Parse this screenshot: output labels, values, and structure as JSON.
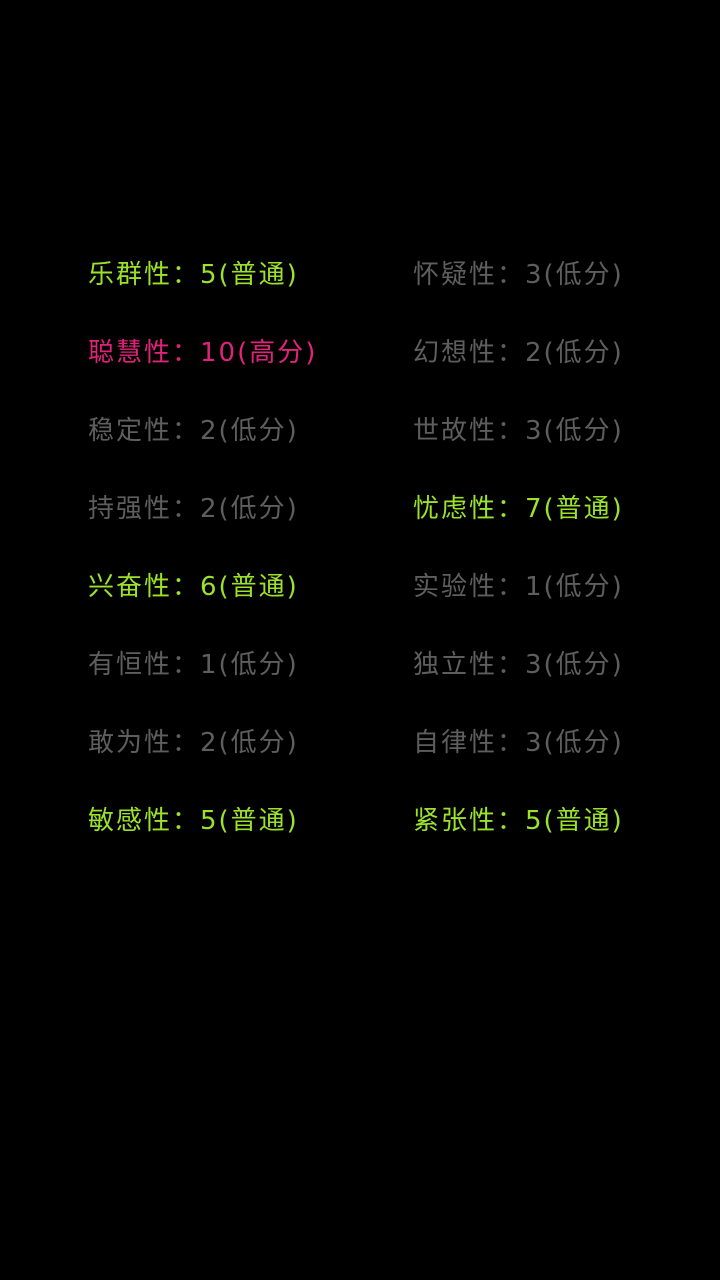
{
  "colors": {
    "high": "#e0237a",
    "normal": "#9be22a",
    "low": "#5e5e5e",
    "background": "#000000"
  },
  "traits": [
    {
      "text": "乐群性：5(普通)",
      "level": "normal"
    },
    {
      "text": "怀疑性：3(低分)",
      "level": "low"
    },
    {
      "text": "聪慧性：10(高分)",
      "level": "high"
    },
    {
      "text": "幻想性：2(低分)",
      "level": "low"
    },
    {
      "text": "稳定性：2(低分)",
      "level": "low"
    },
    {
      "text": "世故性：3(低分)",
      "level": "low"
    },
    {
      "text": "持强性：2(低分)",
      "level": "low"
    },
    {
      "text": "忧虑性：7(普通)",
      "level": "normal"
    },
    {
      "text": "兴奋性：6(普通)",
      "level": "normal"
    },
    {
      "text": "实验性：1(低分)",
      "level": "low"
    },
    {
      "text": "有恒性：1(低分)",
      "level": "low"
    },
    {
      "text": "独立性：3(低分)",
      "level": "low"
    },
    {
      "text": "敢为性：2(低分)",
      "level": "low"
    },
    {
      "text": "自律性：3(低分)",
      "level": "low"
    },
    {
      "text": "敏感性：5(普通)",
      "level": "normal"
    },
    {
      "text": "紧张性：5(普通)",
      "level": "normal"
    }
  ]
}
